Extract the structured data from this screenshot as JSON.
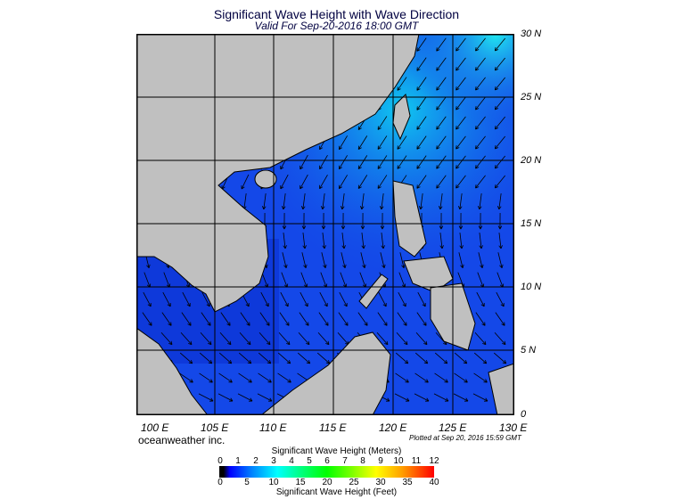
{
  "header": {
    "title": "Significant Wave Height with Wave Direction",
    "valid": "Valid For Sep-20-2016 18:00 GMT"
  },
  "map": {
    "lat_labels": [
      "30 N",
      "25 N",
      "20 N",
      "15 N",
      "10 N",
      "5 N",
      "0"
    ],
    "lon_labels": [
      "100 E",
      "105 E",
      "110 E",
      "115 E",
      "120 E",
      "125 E",
      "130 E"
    ],
    "land_color": "#c0c0c0",
    "ocean_color": "#1448e8",
    "grid_color": "#000000"
  },
  "footer": {
    "brand": "oceanweather inc.",
    "plotted": "Plotted at Sep 20, 2016 15:59 GMT"
  },
  "colorbar": {
    "title_meters": "Significant Wave Height (Meters)",
    "title_feet": "Significant Wave Height (Feet)",
    "meters": [
      "0",
      "1",
      "2",
      "3",
      "4",
      "5",
      "6",
      "7",
      "8",
      "9",
      "10",
      "11",
      "12"
    ],
    "feet": [
      "0",
      "5",
      "10",
      "15",
      "20",
      "25",
      "30",
      "35",
      "40"
    ],
    "colors": [
      "#000000",
      "#0000ff",
      "#0080ff",
      "#00ffff",
      "#00ff80",
      "#00ff00",
      "#80ff00",
      "#ffff00",
      "#ffa000",
      "#ff0000"
    ]
  }
}
